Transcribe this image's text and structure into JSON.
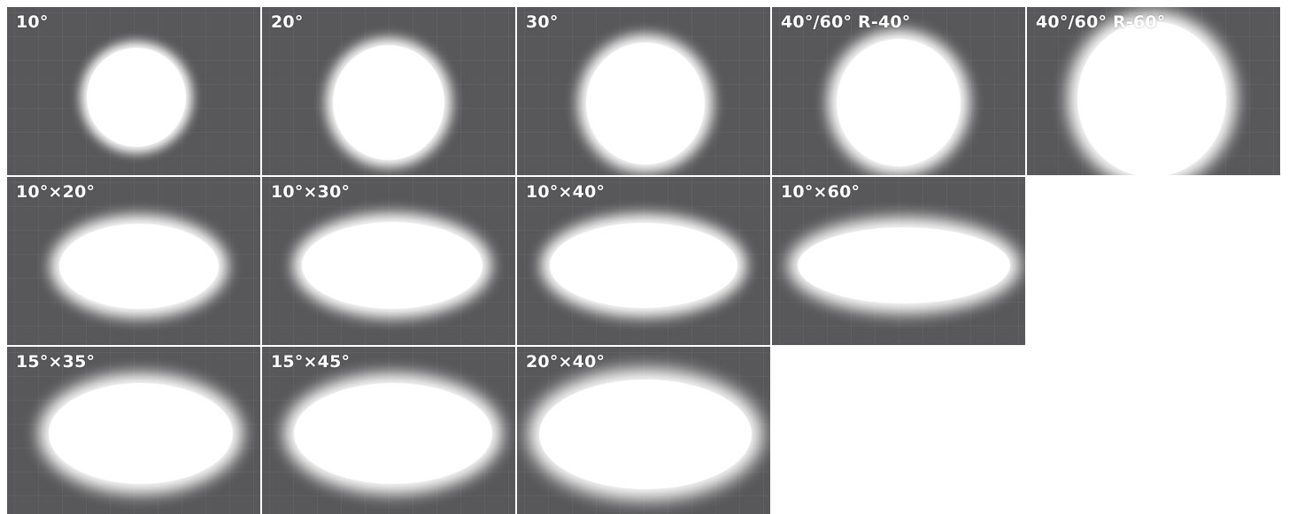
{
  "tiles": [
    {
      "label": "10°",
      "h_angle": 10,
      "v_angle": 10
    },
    {
      "label": "20°",
      "h_angle": 20,
      "v_angle": 20
    },
    {
      "label": "30°",
      "h_angle": 30,
      "v_angle": 30
    },
    {
      "label": "40°/60° R-40°",
      "h_angle": 40,
      "v_angle": 40
    },
    {
      "label": "40°/60° R-60°",
      "h_angle": 60,
      "v_angle": 60
    },
    {
      "label": "10°×20°",
      "h_angle": 20,
      "v_angle": 10
    },
    {
      "label": "10°×30°",
      "h_angle": 30,
      "v_angle": 10
    },
    {
      "label": "10°×40°",
      "h_angle": 40,
      "v_angle": 10
    },
    {
      "label": "10°×60°",
      "h_angle": 60,
      "v_angle": 10
    },
    {
      "label": "15°×35°",
      "h_angle": 35,
      "v_angle": 15
    },
    {
      "label": "15°×45°",
      "h_angle": 45,
      "v_angle": 15
    },
    {
      "label": "20°×40°",
      "h_angle": 40,
      "v_angle": 20
    }
  ],
  "colors": {
    "background": "#ffffff",
    "tile": "#58585a",
    "spot": "#ffffff",
    "label": "#ffffff"
  }
}
